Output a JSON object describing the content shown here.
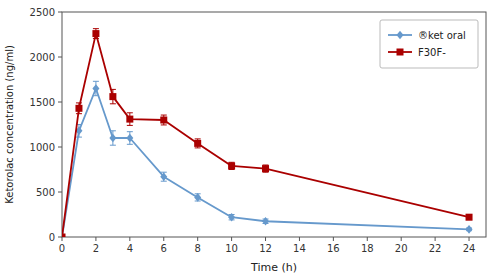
{
  "chart_data": {
    "type": "line",
    "xlabel": "Time (h)",
    "ylabel": "Ketorolac concentration (ng/ml)",
    "x": [
      0,
      1,
      2,
      3,
      4,
      6,
      8,
      10,
      12,
      24
    ],
    "series": [
      {
        "name": "®ket oral",
        "color": "#6699CC",
        "marker": "diamond",
        "values": [
          0,
          1180,
          1650,
          1100,
          1100,
          670,
          440,
          220,
          175,
          85
        ],
        "errors": [
          0,
          70,
          80,
          80,
          70,
          50,
          40,
          30,
          25,
          15
        ]
      },
      {
        "name": "F30F-",
        "color": "#AA0000",
        "marker": "square",
        "values": [
          0,
          1430,
          2260,
          1560,
          1310,
          1300,
          1040,
          790,
          760,
          220
        ],
        "errors": [
          0,
          60,
          55,
          80,
          70,
          55,
          50,
          40,
          40,
          25
        ]
      }
    ],
    "xlim": [
      0,
      25
    ],
    "ylim": [
      0,
      2500
    ],
    "xticks": [
      0,
      2,
      4,
      6,
      8,
      10,
      12,
      14,
      16,
      18,
      20,
      22,
      24
    ],
    "yticks": [
      0,
      500,
      1000,
      1500,
      2000,
      2500
    ],
    "legend": "upper right"
  }
}
